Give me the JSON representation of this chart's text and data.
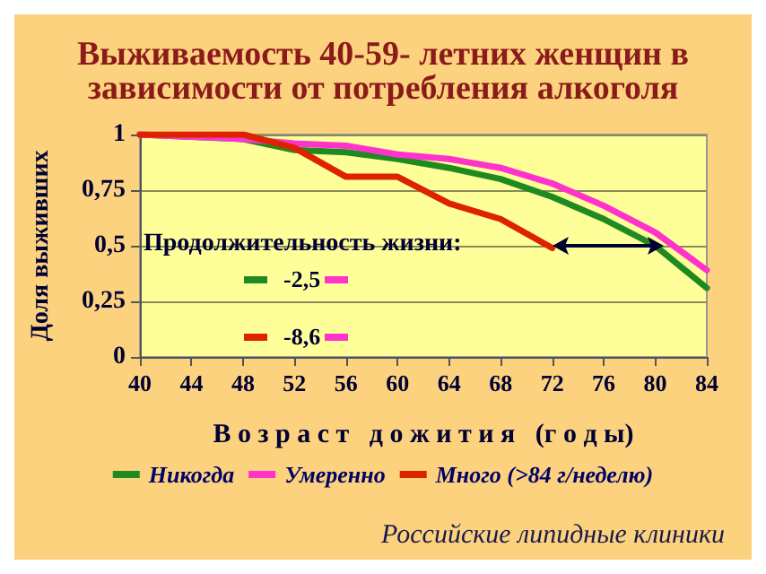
{
  "chart_data": {
    "type": "line",
    "title": "Выживаемость 40-59- летних женщин в\nзависимости от потребления алкоголя",
    "xlabel": "В о з р а с т   д о ж и т и я   (г о д ы)",
    "ylabel": "Доля выживших",
    "x": [
      40,
      44,
      48,
      52,
      56,
      60,
      64,
      68,
      72,
      76,
      80,
      84
    ],
    "series": [
      {
        "name": "Никогда",
        "color": "#1f8a1f",
        "values": [
          1,
          0.99,
          0.98,
          0.93,
          0.92,
          0.89,
          0.85,
          0.8,
          0.72,
          0.62,
          0.5,
          0.31
        ]
      },
      {
        "name": "Умеренно",
        "color": "#ff33cc",
        "values": [
          1,
          0.99,
          0.98,
          0.96,
          0.95,
          0.91,
          0.89,
          0.85,
          0.78,
          0.68,
          0.56,
          0.39
        ]
      },
      {
        "name": "Много (>84 г/неделю)",
        "color": "#dd2200",
        "values": [
          1,
          1,
          1,
          0.94,
          0.81,
          0.81,
          0.69,
          0.62,
          0.49,
          null,
          null,
          null
        ]
      }
    ],
    "xlim": [
      40,
      84
    ],
    "xticks": [
      40,
      44,
      48,
      52,
      56,
      60,
      64,
      68,
      72,
      76,
      80,
      84
    ],
    "ylim": [
      0,
      1
    ],
    "yticks": [
      {
        "value": 0,
        "label": "0"
      },
      {
        "value": 0.25,
        "label": "0,25"
      },
      {
        "value": 0.5,
        "label": "0,5"
      },
      {
        "value": 0.75,
        "label": "0,75"
      },
      {
        "value": 1,
        "label": "1"
      }
    ],
    "grid": "y",
    "legend": "bottom",
    "marker": "none",
    "line_style": "solid",
    "annotations": [
      "Продолжительность жизни:",
      "-2,5",
      "-8,6",
      "Российские липидные клиники"
    ]
  }
}
